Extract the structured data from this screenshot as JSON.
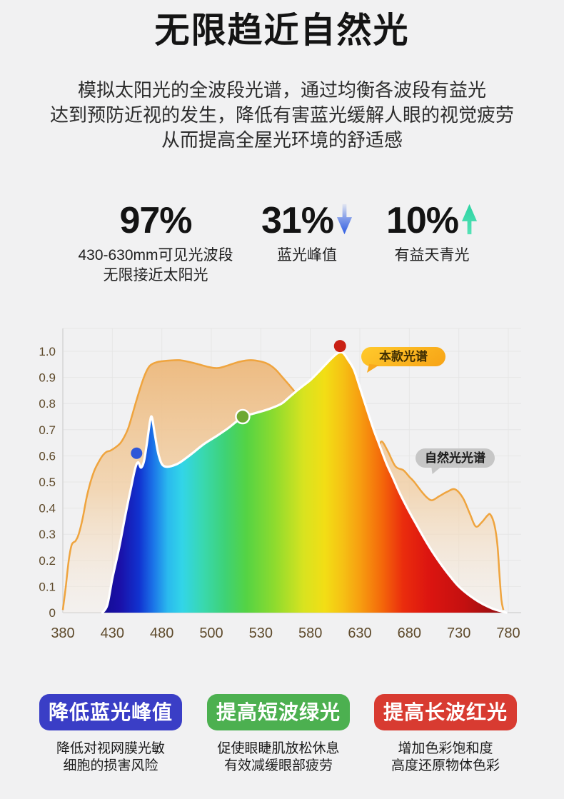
{
  "page": {
    "background": "#f1f1f2"
  },
  "header": {
    "title": "无限趋近自然光",
    "subtitle_lines": [
      "模拟太阳光的全波段光谱，通过均衡各波段有益光",
      "达到预防近视的发生，降低有害蓝光缓解人眼的视觉疲劳",
      "从而提高全屋光环境的舒适感"
    ]
  },
  "stats": [
    {
      "value": "97%",
      "arrow": "none",
      "arrow_color": "",
      "label_lines": [
        "430-630mm可见光波段",
        "无限接近太阳光"
      ]
    },
    {
      "value": "31%",
      "arrow": "down",
      "arrow_color": "#2e5ce2",
      "label_lines": [
        "蓝光峰值"
      ]
    },
    {
      "value": "10%",
      "arrow": "up",
      "arrow_color": "#2bd3a2",
      "label_lines": [
        "有益天青光"
      ]
    }
  ],
  "chart_data": {
    "type": "area",
    "title": "",
    "xlabel": "",
    "ylabel": "",
    "x_ticks": [
      380,
      430,
      480,
      500,
      530,
      580,
      630,
      680,
      730,
      780
    ],
    "y_ticks": [
      "0",
      "0.1",
      "0.2",
      "0.3",
      "0.4",
      "0.5",
      "0.6",
      "0.7",
      "0.8",
      "0.9",
      "1.0"
    ],
    "ylim": [
      0,
      1.05
    ],
    "grid": true,
    "axis_color": "#5e4a2b",
    "grid_color": "#e6e6e6",
    "axis_line_color": "#d5d5d5",
    "labels": [
      {
        "text": "本款光谱",
        "series": "product"
      },
      {
        "text": "自然光光谱",
        "series": "natural"
      }
    ],
    "series": [
      {
        "name": "自然光光谱",
        "style": "natural",
        "stroke": "#efa43e",
        "fill_top": "#ecb678",
        "fill_bottom": "#f8efe6",
        "points": [
          [
            380,
            0.01
          ],
          [
            383,
            0.1
          ],
          [
            386,
            0.2
          ],
          [
            389,
            0.26
          ],
          [
            393,
            0.275
          ],
          [
            396,
            0.3
          ],
          [
            400,
            0.36
          ],
          [
            404,
            0.44
          ],
          [
            408,
            0.5
          ],
          [
            412,
            0.545
          ],
          [
            416,
            0.575
          ],
          [
            420,
            0.6
          ],
          [
            424,
            0.615
          ],
          [
            428,
            0.62
          ],
          [
            433,
            0.632
          ],
          [
            438,
            0.648
          ],
          [
            442,
            0.672
          ],
          [
            446,
            0.705
          ],
          [
            450,
            0.755
          ],
          [
            455,
            0.82
          ],
          [
            460,
            0.88
          ],
          [
            464,
            0.92
          ],
          [
            468,
            0.945
          ],
          [
            473,
            0.956
          ],
          [
            480,
            0.962
          ],
          [
            487,
            0.966
          ],
          [
            493,
            0.955
          ],
          [
            499,
            0.94
          ],
          [
            504,
            0.936
          ],
          [
            510,
            0.946
          ],
          [
            517,
            0.96
          ],
          [
            524,
            0.966
          ],
          [
            531,
            0.96
          ],
          [
            538,
            0.95
          ],
          [
            545,
            0.93
          ],
          [
            552,
            0.9
          ],
          [
            560,
            0.865
          ],
          [
            570,
            0.82
          ],
          [
            580,
            0.78
          ],
          [
            592,
            0.735
          ],
          [
            605,
            0.7
          ],
          [
            620,
            0.675
          ],
          [
            632,
            0.657
          ],
          [
            641,
            0.64
          ],
          [
            648,
            0.625
          ],
          [
            652,
            0.655
          ],
          [
            658,
            0.62
          ],
          [
            666,
            0.56
          ],
          [
            674,
            0.545
          ],
          [
            680,
            0.52
          ],
          [
            685,
            0.5
          ],
          [
            692,
            0.465
          ],
          [
            698,
            0.44
          ],
          [
            703,
            0.43
          ],
          [
            710,
            0.445
          ],
          [
            718,
            0.462
          ],
          [
            726,
            0.472
          ],
          [
            734,
            0.44
          ],
          [
            741,
            0.38
          ],
          [
            747,
            0.33
          ],
          [
            753,
            0.345
          ],
          [
            759,
            0.372
          ],
          [
            762,
            0.375
          ],
          [
            766,
            0.335
          ],
          [
            769,
            0.26
          ],
          [
            771,
            0.15
          ],
          [
            773,
            0.05
          ],
          [
            775,
            0.01
          ]
        ]
      },
      {
        "name": "本款光谱",
        "style": "spectrum",
        "stroke": "#ffffff",
        "points": [
          [
            420,
            0
          ],
          [
            425,
            0.03
          ],
          [
            430,
            0.13
          ],
          [
            437,
            0.25
          ],
          [
            443,
            0.37
          ],
          [
            449,
            0.48
          ],
          [
            453,
            0.55
          ],
          [
            456,
            0.575
          ],
          [
            459,
            0.555
          ],
          [
            462,
            0.58
          ],
          [
            465,
            0.65
          ],
          [
            468,
            0.73
          ],
          [
            470,
            0.748
          ],
          [
            473,
            0.68
          ],
          [
            477,
            0.6
          ],
          [
            481,
            0.56
          ],
          [
            486,
            0.568
          ],
          [
            491,
            0.6
          ],
          [
            497,
            0.645
          ],
          [
            503,
            0.675
          ],
          [
            510,
            0.705
          ],
          [
            519,
            0.748
          ],
          [
            527,
            0.764
          ],
          [
            535,
            0.775
          ],
          [
            543,
            0.786
          ],
          [
            551,
            0.8
          ],
          [
            558,
            0.822
          ],
          [
            565,
            0.845
          ],
          [
            572,
            0.866
          ],
          [
            580,
            0.89
          ],
          [
            588,
            0.92
          ],
          [
            596,
            0.952
          ],
          [
            602,
            0.975
          ],
          [
            608,
            0.994
          ],
          [
            613,
            0.994
          ],
          [
            618,
            0.968
          ],
          [
            624,
            0.93
          ],
          [
            630,
            0.862
          ],
          [
            637,
            0.78
          ],
          [
            644,
            0.7
          ],
          [
            650,
            0.64
          ],
          [
            657,
            0.57
          ],
          [
            663,
            0.52
          ],
          [
            670,
            0.46
          ],
          [
            678,
            0.4
          ],
          [
            686,
            0.345
          ],
          [
            695,
            0.285
          ],
          [
            703,
            0.235
          ],
          [
            712,
            0.185
          ],
          [
            721,
            0.14
          ],
          [
            730,
            0.1
          ],
          [
            740,
            0.068
          ],
          [
            750,
            0.042
          ],
          [
            760,
            0.022
          ],
          [
            768,
            0.01
          ],
          [
            775,
            0.003
          ],
          [
            778,
            0
          ]
        ]
      }
    ],
    "markers": [
      {
        "x": 454.5,
        "y": 0.61,
        "color": "#2e57d8",
        "r": 8,
        "ring": ""
      },
      {
        "x": 519,
        "y": 0.75,
        "color": "#6ea832",
        "r": 9.5,
        "ring": "#ffffff"
      },
      {
        "x": 610,
        "y": 1.02,
        "color": "#c92014",
        "r": 8.5,
        "ring": ""
      }
    ],
    "spectrum_gradient": [
      {
        "o": 0,
        "c": "#140c96"
      },
      {
        "o": 0.036,
        "c": "#1a10a8"
      },
      {
        "o": 0.084,
        "c": "#1133d0"
      },
      {
        "o": 0.119,
        "c": "#1b74e8"
      },
      {
        "o": 0.155,
        "c": "#2ab9ee"
      },
      {
        "o": 0.191,
        "c": "#32d5e8"
      },
      {
        "o": 0.244,
        "c": "#39d8ae"
      },
      {
        "o": 0.298,
        "c": "#3ed276"
      },
      {
        "o": 0.351,
        "c": "#54d344"
      },
      {
        "o": 0.422,
        "c": "#8edb2e"
      },
      {
        "o": 0.494,
        "c": "#d8e320"
      },
      {
        "o": 0.547,
        "c": "#f2de15"
      },
      {
        "o": 0.592,
        "c": "#f6c114"
      },
      {
        "o": 0.636,
        "c": "#f79d10"
      },
      {
        "o": 0.69,
        "c": "#f4680a"
      },
      {
        "o": 0.743,
        "c": "#ea2c0d"
      },
      {
        "o": 0.806,
        "c": "#dc1510"
      },
      {
        "o": 0.895,
        "c": "#c41010"
      },
      {
        "o": 1,
        "c": "#8e0f12"
      }
    ]
  },
  "benefits": [
    {
      "badge": "降低蓝光峰值",
      "badge_color": "#3a3ec6",
      "desc_lines": [
        "降低对视网膜光敏",
        "细胞的损害风险"
      ]
    },
    {
      "badge": "提高短波绿光",
      "badge_color": "#4cb050",
      "desc_lines": [
        "促使眼睫肌放松休息",
        "有效减缓眼部疲劳"
      ]
    },
    {
      "badge": "提高长波红光",
      "badge_color": "#d83b31",
      "desc_lines": [
        "增加色彩饱和度",
        "高度还原物体色彩"
      ]
    }
  ]
}
